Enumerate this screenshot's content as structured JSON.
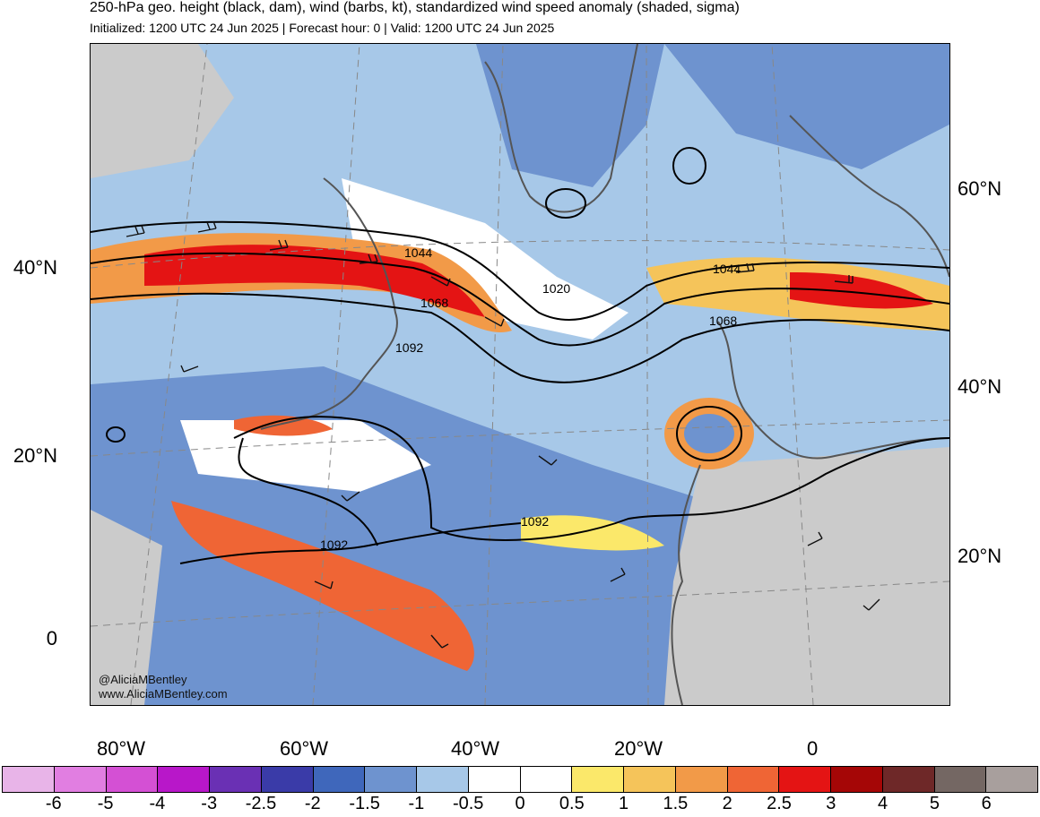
{
  "header": {
    "title": "250-hPa geo. height (black, dam), wind (barbs, kt), standardized wind speed anomaly (shaded, sigma)",
    "subtitle": "Initialized: 1200 UTC 24 Jun 2025 | Forecast hour: 0 | Valid: 1200 UTC 24 Jun 2025"
  },
  "map": {
    "lat_left": [
      "40°N",
      "20°N",
      "0"
    ],
    "lat_right": [
      "60°N",
      "40°N",
      "20°N"
    ],
    "lon_bottom": [
      "80°W",
      "60°W",
      "40°W",
      "20°W",
      "0"
    ],
    "contour_labels": [
      "1044",
      "1068",
      "1092",
      "1020",
      "1044",
      "1068",
      "1092",
      "1092"
    ],
    "credit": [
      "@AliciaMBentley",
      "www.AliciaMBentley.com"
    ]
  },
  "colorbar": {
    "colors": [
      "#e8b4e8",
      "#e17ee1",
      "#d450d4",
      "#b817c9",
      "#6a30b4",
      "#3a3ba8",
      "#3f67bb",
      "#6e93cf",
      "#a7c8e8",
      "#ffffff",
      "#ffffff",
      "#fbe86a",
      "#f5c45a",
      "#f29a48",
      "#ef6535",
      "#e41414",
      "#a50606",
      "#6e2828",
      "#746763",
      "#a89f9d"
    ],
    "ticks": [
      "-6",
      "-5",
      "-4",
      "-3",
      "-2.5",
      "-2",
      "-1.5",
      "-1",
      "-0.5",
      "0",
      "0.5",
      "1",
      "1.5",
      "2",
      "2.5",
      "3",
      "4",
      "5",
      "6"
    ]
  }
}
